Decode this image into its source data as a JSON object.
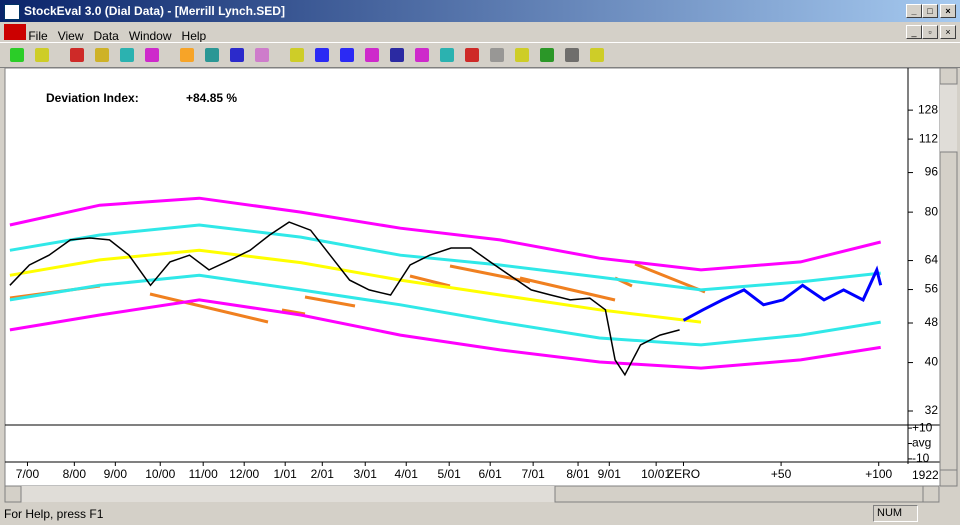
{
  "window": {
    "title": "StockEval 3.0  (Dial Data) - [Merrill Lynch.SED]",
    "menu": [
      "File",
      "View",
      "Data",
      "Window",
      "Help"
    ],
    "status": "For Help, press F1",
    "indicator": "NUM"
  },
  "chart_data": {
    "type": "line",
    "log_scale": true,
    "annotation": {
      "text": "Deviation Index:",
      "value": 84.85,
      "value_label": "+84.85 %"
    },
    "xlim": [
      -347,
      115
    ],
    "ylim": [
      30,
      154
    ],
    "yticks": [
      32,
      40,
      48,
      56,
      64,
      80,
      96,
      112,
      128
    ],
    "xticks": [
      {
        "value": -336,
        "label": "7/00"
      },
      {
        "value": -312,
        "label": "8/00"
      },
      {
        "value": -291,
        "label": "9/00"
      },
      {
        "value": -268,
        "label": "10/00"
      },
      {
        "value": -246,
        "label": "11/00"
      },
      {
        "value": -225,
        "label": "12/00"
      },
      {
        "value": -204,
        "label": "1/01"
      },
      {
        "value": -185,
        "label": "2/01"
      },
      {
        "value": -163,
        "label": "3/01"
      },
      {
        "value": -142,
        "label": "4/01"
      },
      {
        "value": -120,
        "label": "5/01"
      },
      {
        "value": -99,
        "label": "6/01"
      },
      {
        "value": -77,
        "label": "7/01"
      },
      {
        "value": -54,
        "label": "8/01"
      },
      {
        "value": -38,
        "label": "9/01"
      },
      {
        "value": -14,
        "label": "10/01"
      },
      {
        "value": 0,
        "label": "ZERO"
      },
      {
        "value": 50,
        "label": "+50"
      },
      {
        "value": 100,
        "label": "+100"
      }
    ],
    "series": [
      {
        "color": "#ff00ff",
        "x": [
          -345,
          -299,
          -248,
          -196,
          -145,
          -94,
          -43,
          9,
          60,
          101
        ],
        "values": [
          75.4,
          82.6,
          85.3,
          80.0,
          74.3,
          70.4,
          64.7,
          61.3,
          63.6,
          69.7
        ]
      },
      {
        "color": "#30e8e8",
        "x": [
          -345,
          -299,
          -248,
          -196,
          -145,
          -94,
          -43,
          9,
          60,
          101
        ],
        "values": [
          67.1,
          72.0,
          75.4,
          71.3,
          65.6,
          62.7,
          59.3,
          55.9,
          58.0,
          60.4
        ]
      },
      {
        "color": "#ffff00",
        "x": [
          -345,
          -299,
          -248,
          -196,
          -145,
          -94,
          -43,
          9,
          60,
          101
        ],
        "values": [
          59.8,
          64.2,
          67.1,
          63.4,
          58.5,
          54.6,
          51.0,
          48.2,
          null,
          null
        ]
      },
      {
        "color": "#30e8e8",
        "x": [
          -345,
          -299,
          -248,
          -196,
          -145,
          -94,
          -43,
          9,
          60,
          101
        ],
        "values": [
          53.4,
          57.1,
          59.8,
          55.9,
          52.2,
          48.2,
          44.8,
          43.4,
          45.4,
          48.2
        ]
      },
      {
        "color": "#ff00ff",
        "x": [
          -345,
          -299,
          -248,
          -196,
          -145,
          -94,
          -43,
          9,
          60,
          101
        ],
        "values": [
          46.5,
          49.8,
          53.4,
          49.8,
          45.4,
          42.4,
          40.1,
          39.0,
          40.5,
          42.9
        ]
      },
      {
        "color": "#000000",
        "x": [
          -345,
          -335,
          -325,
          -314,
          -304,
          -294,
          -284,
          -273,
          -263,
          -253,
          -243,
          -232,
          -222,
          -212,
          -202,
          -191,
          -181,
          -171,
          -161,
          -150,
          -140,
          -130,
          -119,
          -109,
          -99,
          -89,
          -78,
          -68,
          -58,
          -48,
          -40,
          -35,
          -30,
          -22,
          -12,
          -2
        ],
        "values": [
          57.1,
          62.7,
          65.6,
          70.4,
          71.0,
          70.4,
          65.6,
          57.1,
          63.6,
          65.6,
          61.3,
          64.2,
          67.1,
          72.0,
          76.4,
          73.6,
          65.6,
          58.5,
          55.9,
          54.6,
          62.7,
          65.6,
          67.8,
          67.8,
          63.6,
          59.8,
          55.9,
          54.6,
          53.4,
          53.8,
          51.0,
          40.5,
          37.8,
          43.4,
          45.4,
          46.5
        ]
      },
      {
        "color": "#0000ff",
        "x": [
          0,
          10,
          20,
          31,
          41,
          51,
          61,
          72,
          82,
          92,
          99,
          101
        ],
        "values": [
          48.6,
          51.0,
          53.4,
          55.9,
          52.2,
          53.4,
          57.1,
          53.4,
          55.9,
          53.4,
          61.3,
          57.1
        ]
      }
    ],
    "volume_panel": {
      "ylim": [
        -12,
        12
      ],
      "yticks": [
        {
          "value": 10,
          "label": "+10"
        },
        {
          "value": 0,
          "label": "avg"
        },
        -10
      ]
    },
    "corner_label": "1922"
  }
}
